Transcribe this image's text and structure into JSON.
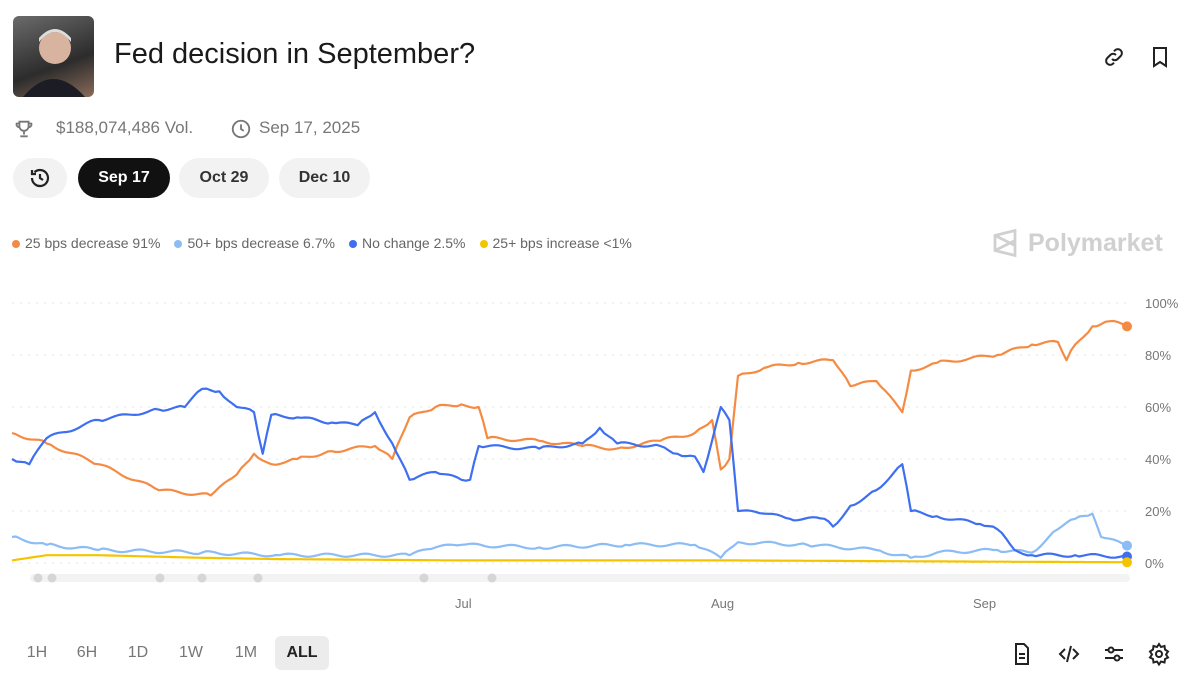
{
  "header": {
    "title": "Fed decision in September?",
    "volume": "$188,074,486 Vol.",
    "date": "Sep 17, 2025"
  },
  "date_tabs": [
    {
      "label": "Sep 17",
      "active": true
    },
    {
      "label": "Oct 29",
      "active": false
    },
    {
      "label": "Dec 10",
      "active": false
    }
  ],
  "brand": "Polymarket",
  "ranges": [
    "1H",
    "6H",
    "1D",
    "1W",
    "1M",
    "ALL"
  ],
  "active_range": "ALL",
  "chart_data": {
    "type": "line",
    "yticks": [
      "100%",
      "80%",
      "60%",
      "40%",
      "20%",
      "0%"
    ],
    "ylim": [
      0,
      100
    ],
    "xticks": [
      "Jul",
      "Aug",
      "Sep"
    ],
    "xlim": [
      "2025-05-10",
      "2025-09-16"
    ],
    "grid": true,
    "legend_placement": "top-left",
    "series": [
      {
        "name": "25 bps decrease",
        "label": "91%",
        "color": "#f58b43",
        "points": [
          [
            "05-10",
            50
          ],
          [
            "05-14",
            46
          ],
          [
            "05-20",
            38
          ],
          [
            "05-27",
            28
          ],
          [
            "06-02",
            26
          ],
          [
            "06-05",
            34
          ],
          [
            "06-07",
            42
          ],
          [
            "06-09",
            38
          ],
          [
            "06-12",
            40
          ],
          [
            "06-16",
            43
          ],
          [
            "06-21",
            45
          ],
          [
            "06-23",
            40
          ],
          [
            "06-25",
            56
          ],
          [
            "06-28",
            60
          ],
          [
            "07-01",
            61
          ],
          [
            "07-03",
            60
          ],
          [
            "07-04",
            48
          ],
          [
            "07-10",
            47
          ],
          [
            "07-15",
            45
          ],
          [
            "07-19",
            44
          ],
          [
            "07-24",
            47
          ],
          [
            "07-28",
            50
          ],
          [
            "07-30",
            55
          ],
          [
            "07-31",
            36
          ],
          [
            "08-01",
            40
          ],
          [
            "08-02",
            72
          ],
          [
            "08-05",
            75
          ],
          [
            "08-09",
            77
          ],
          [
            "08-13",
            78
          ],
          [
            "08-15",
            68
          ],
          [
            "08-18",
            70
          ],
          [
            "08-21",
            58
          ],
          [
            "08-22",
            74
          ],
          [
            "08-25",
            77
          ],
          [
            "09-01",
            80
          ],
          [
            "09-05",
            84
          ],
          [
            "09-08",
            85
          ],
          [
            "09-09",
            78
          ],
          [
            "09-10",
            84
          ],
          [
            "09-12",
            91
          ],
          [
            "09-14",
            93
          ],
          [
            "09-16",
            91
          ]
        ]
      },
      {
        "name": "50+ bps decrease",
        "label": "6.7%",
        "color": "#8bbcf5",
        "points": [
          [
            "05-10",
            10
          ],
          [
            "05-14",
            7
          ],
          [
            "05-20",
            5
          ],
          [
            "06-01",
            4
          ],
          [
            "06-10",
            3
          ],
          [
            "06-25",
            3
          ],
          [
            "06-28",
            6
          ],
          [
            "07-01",
            7
          ],
          [
            "07-10",
            6
          ],
          [
            "07-20",
            7
          ],
          [
            "07-28",
            7
          ],
          [
            "07-31",
            2
          ],
          [
            "08-02",
            8
          ],
          [
            "08-10",
            7
          ],
          [
            "08-18",
            5
          ],
          [
            "08-22",
            2
          ],
          [
            "08-25",
            4
          ],
          [
            "09-01",
            5
          ],
          [
            "09-05",
            4
          ],
          [
            "09-08",
            13
          ],
          [
            "09-10",
            17
          ],
          [
            "09-12",
            19
          ],
          [
            "09-13",
            10
          ],
          [
            "09-16",
            6.7
          ]
        ]
      },
      {
        "name": "No change",
        "label": "2.5%",
        "color": "#3d6ff0",
        "points": [
          [
            "05-10",
            40
          ],
          [
            "05-12",
            38
          ],
          [
            "05-14",
            48
          ],
          [
            "05-20",
            55
          ],
          [
            "05-27",
            59
          ],
          [
            "05-30",
            60
          ],
          [
            "06-01",
            67
          ],
          [
            "06-03",
            66
          ],
          [
            "06-05",
            60
          ],
          [
            "06-07",
            58
          ],
          [
            "06-08",
            42
          ],
          [
            "06-09",
            57
          ],
          [
            "06-12",
            56
          ],
          [
            "06-16",
            54
          ],
          [
            "06-19",
            53
          ],
          [
            "06-21",
            58
          ],
          [
            "06-23",
            46
          ],
          [
            "06-25",
            32
          ],
          [
            "06-28",
            35
          ],
          [
            "07-01",
            32
          ],
          [
            "07-02",
            32
          ],
          [
            "07-03",
            45
          ],
          [
            "07-10",
            44
          ],
          [
            "07-15",
            46
          ],
          [
            "07-17",
            52
          ],
          [
            "07-19",
            46
          ],
          [
            "07-24",
            45
          ],
          [
            "07-26",
            42
          ],
          [
            "07-28",
            41
          ],
          [
            "07-29",
            35
          ],
          [
            "07-31",
            60
          ],
          [
            "08-01",
            55
          ],
          [
            "08-02",
            20
          ],
          [
            "08-05",
            19
          ],
          [
            "08-08",
            17
          ],
          [
            "08-12",
            17
          ],
          [
            "08-13",
            14
          ],
          [
            "08-15",
            22
          ],
          [
            "08-18",
            28
          ],
          [
            "08-21",
            38
          ],
          [
            "08-22",
            20
          ],
          [
            "08-25",
            18
          ],
          [
            "08-30",
            15
          ],
          [
            "09-01",
            13
          ],
          [
            "09-03",
            5
          ],
          [
            "09-05",
            3
          ],
          [
            "09-10",
            3
          ],
          [
            "09-16",
            2.5
          ]
        ]
      },
      {
        "name": "25+ bps increase",
        "label": "<1%",
        "color": "#f5c400",
        "points": [
          [
            "05-10",
            1
          ],
          [
            "05-14",
            3
          ],
          [
            "05-20",
            3
          ],
          [
            "06-01",
            2
          ],
          [
            "06-10",
            1.5
          ],
          [
            "07-01",
            1
          ],
          [
            "08-01",
            1
          ],
          [
            "09-01",
            0.5
          ],
          [
            "09-16",
            0.3
          ]
        ]
      }
    ]
  }
}
